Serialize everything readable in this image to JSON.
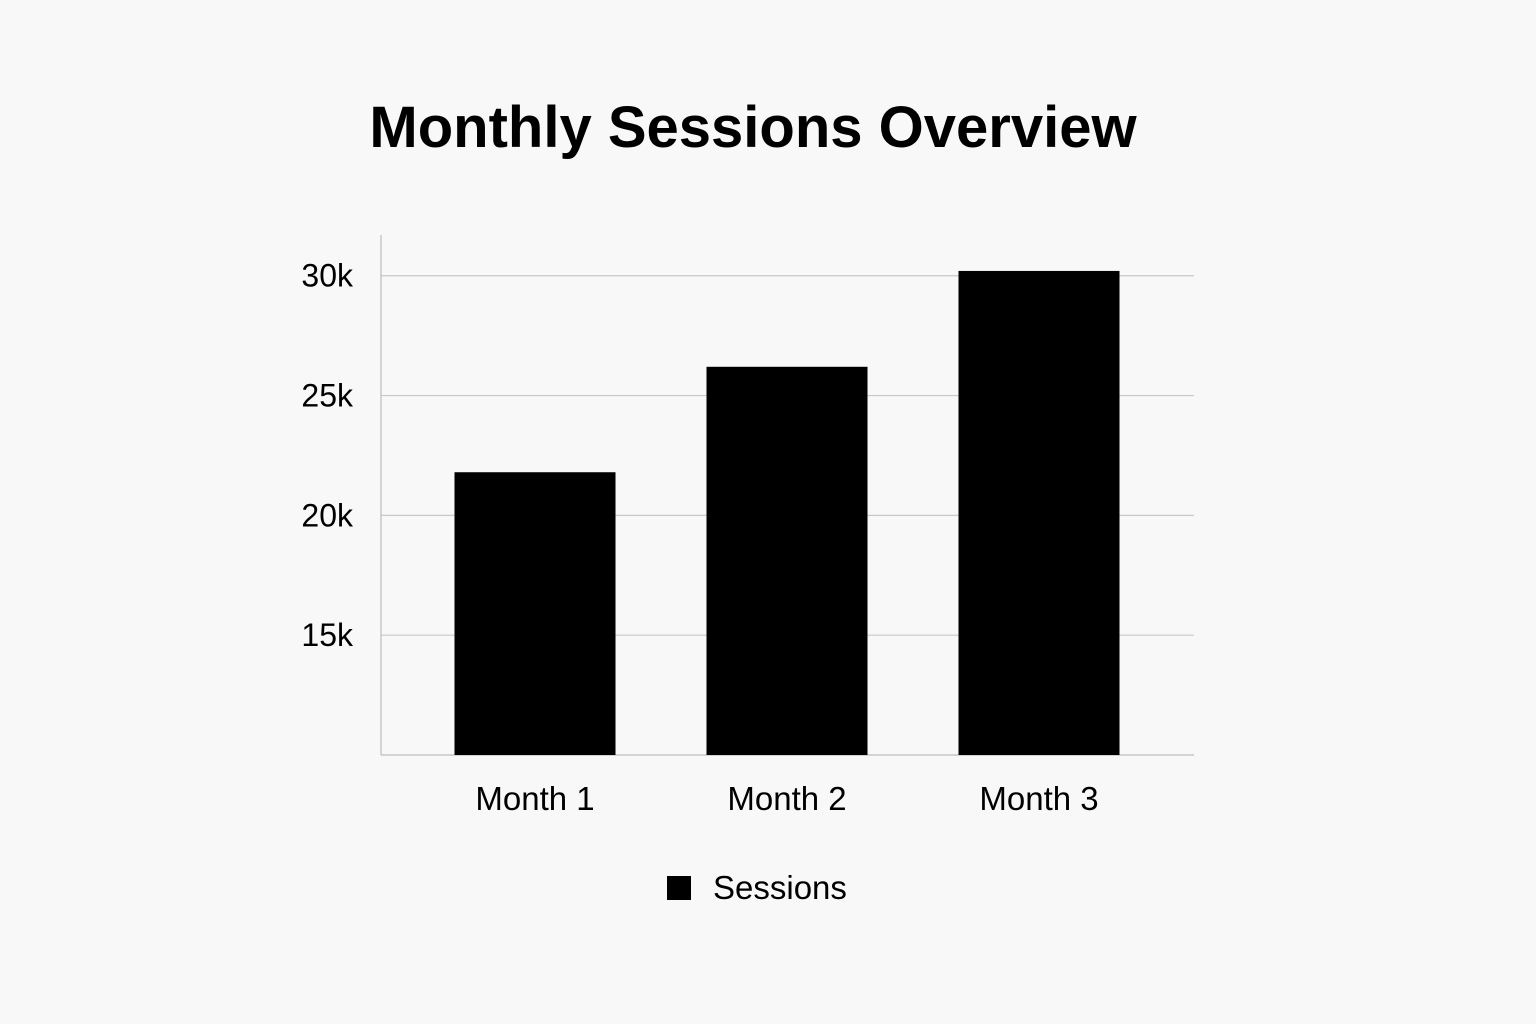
{
  "chart_data": {
    "type": "bar",
    "title": "Monthly Sessions Overview",
    "xlabel": "",
    "ylabel": "",
    "categories": [
      "Month 1",
      "Month 2",
      "Month 3"
    ],
    "series": [
      {
        "name": "Sessions",
        "values": [
          21800,
          26200,
          30200
        ],
        "color": "#000000"
      }
    ],
    "ylim": [
      10000,
      31700
    ],
    "yticks": [
      15000,
      20000,
      25000,
      30000
    ],
    "ytick_labels": [
      "15k",
      "20k",
      "25k",
      "30k"
    ],
    "grid": true,
    "legend": "bottom-center",
    "colors": {
      "bar": "#000000",
      "grid": "#c8c8c8",
      "axis": "#bdbdbd",
      "background": "#f8f8f8"
    }
  }
}
